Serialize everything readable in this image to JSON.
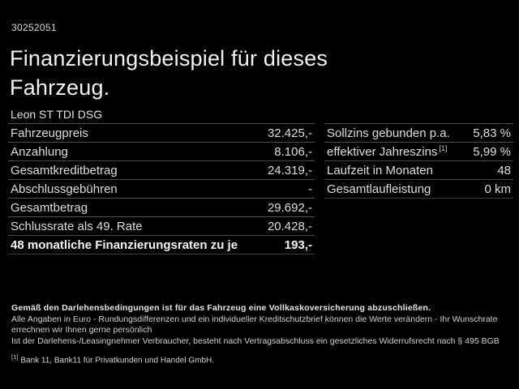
{
  "header": {
    "id_number": "30252051",
    "title_line1": "Finanzierungsbeispiel für dieses",
    "title_line2": "Fahrzeug.",
    "subtitle": "Leon ST TDI DSG"
  },
  "left_table": {
    "rows": [
      {
        "label": "Fahrzeugpreis",
        "value": "32.425,-"
      },
      {
        "label": "Anzahlung",
        "value": "8.106,-"
      },
      {
        "label": "Gesamtkreditbetrag",
        "value": "24.319,-"
      },
      {
        "label": "Abschlussgebühren",
        "value": "-"
      },
      {
        "label": "Gesamtbetrag",
        "value": "29.692,-"
      },
      {
        "label": "Schlussrate als 49. Rate",
        "value": "20.428,-"
      },
      {
        "label": "48 monatliche Finanzierungsraten zu je",
        "value": "193,-"
      }
    ]
  },
  "right_table": {
    "rows": [
      {
        "label": "Sollzins gebunden p.a.",
        "value": "5,83 %"
      },
      {
        "label": "effektiver Jahreszins",
        "sup": "[1]",
        "value": "5,99 %"
      },
      {
        "label": "Laufzeit in Monaten",
        "value": "48"
      },
      {
        "label": "Gesamtlaufleistung",
        "value": "0 km"
      }
    ]
  },
  "footer": {
    "insurance_note": "Gemäß den Darlehensbedingungen ist für das Fahrzeug eine Vollkaskoversicherung abzuschließen.",
    "disclaimer1": "Alle Angaben in Euro - Rundungsdifferenzen und ein individueller Kreditschutzbrief können die Werte verändern - Ihr Wunschrate errechnen wir Ihnen gerne persönlich",
    "disclaimer2": "Ist der Darlehens-/Leasingnehmer Verbraucher, besteht nach Vertragsabschluss ein gesetzliches Widerrufsrecht nach § 495 BGB",
    "footnote_marker": "[1]",
    "footnote_text": "Bank 11, Bank11 für Privatkunden und Handel GmbH."
  },
  "colors": {
    "background": "#000000",
    "text": "#e6e6e6",
    "separator": "#4d4d4d"
  }
}
